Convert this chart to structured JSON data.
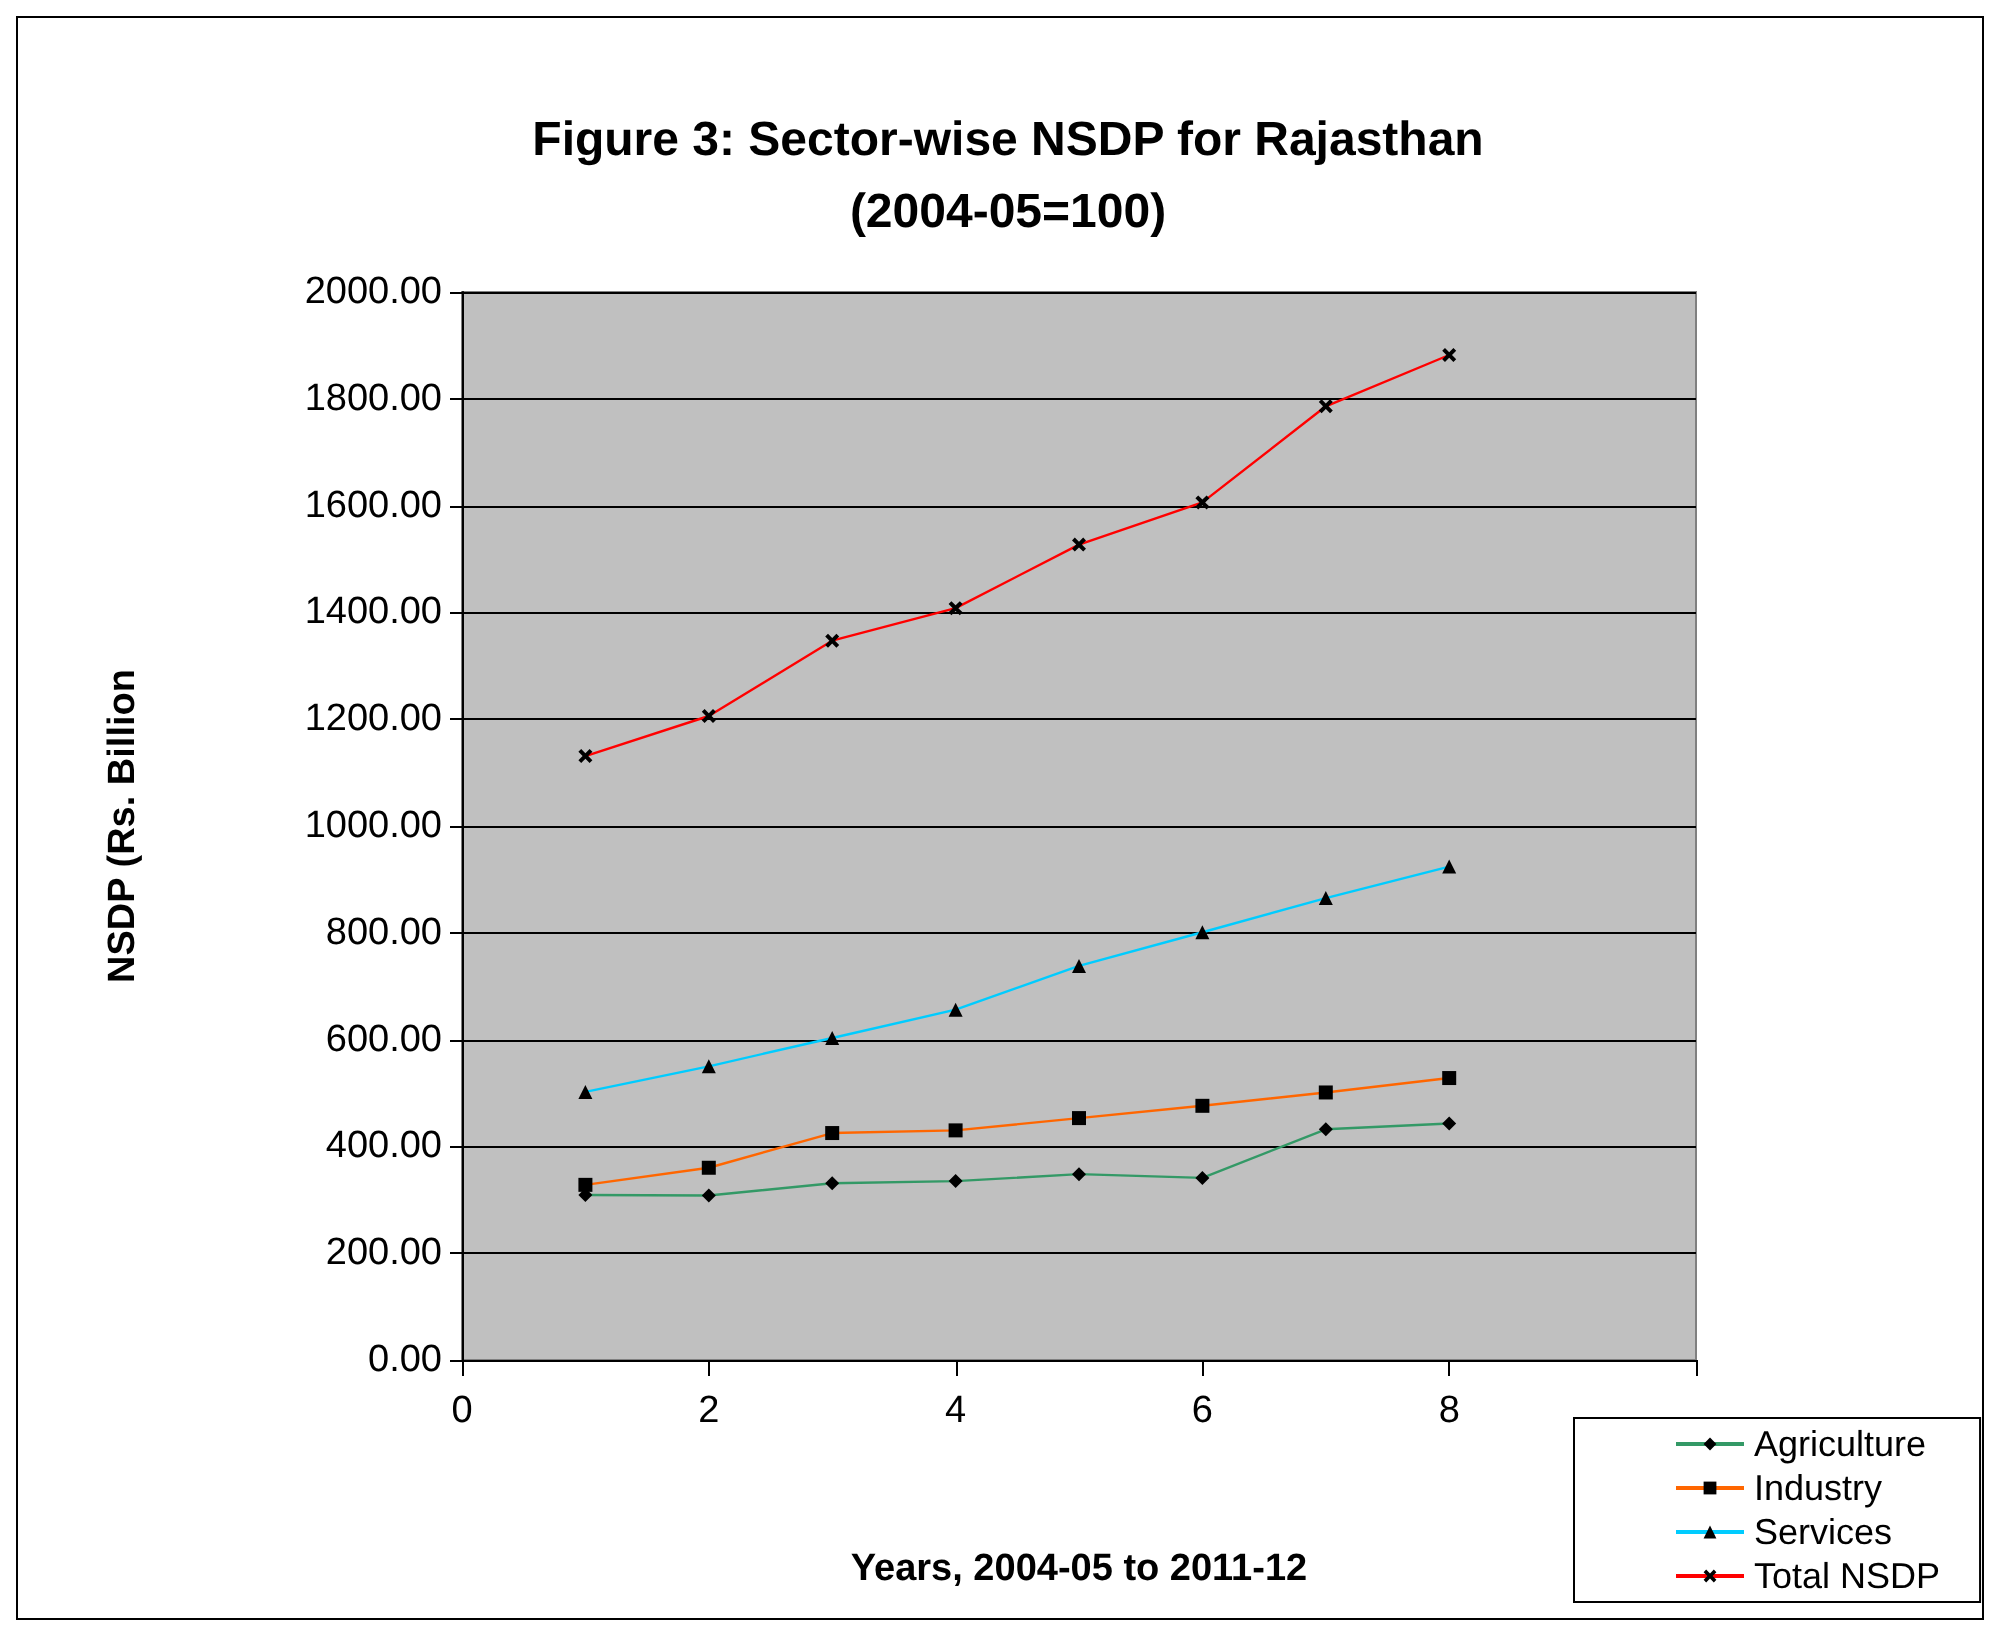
{
  "chart_data": {
    "type": "line",
    "title": "Figure 3: Sector-wise NSDP for Rajasthan\n(2004-05=100)",
    "xlabel": "Years, 2004-05 to 2011-12",
    "ylabel": "NSDP (Rs. Billion",
    "x": [
      1,
      2,
      3,
      4,
      5,
      6,
      7,
      8
    ],
    "series": [
      {
        "name": "Agriculture",
        "color": "#339966",
        "marker": "diamond",
        "values": [
          309,
          308,
          331,
          335,
          348,
          341,
          432,
          443
        ]
      },
      {
        "name": "Industry",
        "color": "#ff6600",
        "marker": "square",
        "values": [
          328,
          360,
          425,
          430,
          453,
          476,
          501,
          528
        ]
      },
      {
        "name": "Services",
        "color": "#00ccff",
        "marker": "triangle",
        "values": [
          502,
          550,
          603,
          656,
          738,
          801,
          865,
          924
        ]
      },
      {
        "name": "Total NSDP",
        "color": "#ff0000",
        "marker": "cross",
        "values": [
          1131,
          1206,
          1347,
          1408,
          1527,
          1606,
          1786,
          1882
        ]
      }
    ],
    "xlim": [
      0,
      10
    ],
    "xticks": [
      0,
      2,
      4,
      6,
      8,
      {
        "value": 10,
        "label": null
      }
    ],
    "ylim": [
      0,
      2000
    ],
    "yticks": [
      {
        "value": 0,
        "label": "0.00"
      },
      {
        "value": 200,
        "label": "200.00"
      },
      {
        "value": 400,
        "label": "400.00"
      },
      {
        "value": 600,
        "label": "600.00"
      },
      {
        "value": 800,
        "label": "800.00"
      },
      {
        "value": 1000,
        "label": "1000.00"
      },
      {
        "value": 1200,
        "label": "1200.00"
      },
      {
        "value": 1400,
        "label": "1400.00"
      },
      {
        "value": 1600,
        "label": "1600.00"
      },
      {
        "value": 1800,
        "label": "1800.00"
      },
      {
        "value": 2000,
        "label": "2000.00"
      }
    ],
    "grid": "y",
    "legend": "bottom right"
  }
}
